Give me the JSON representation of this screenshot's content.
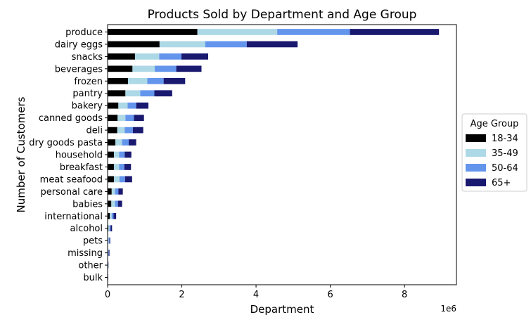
{
  "chart_data": {
    "type": "bar",
    "orientation": "horizontal",
    "stacked": true,
    "title": "Products Sold by Department and Age Group",
    "xlabel": "Department",
    "ylabel": "Number of Customers",
    "x_offset_label": "1e6",
    "xlim": [
      0,
      9.4
    ],
    "x_ticks": [
      0,
      2,
      4,
      6,
      8
    ],
    "x_tick_labels": [
      "0",
      "2",
      "4",
      "6",
      "8"
    ],
    "grid": false,
    "legend": {
      "title": "Age Group",
      "placement": "center-right-outside"
    },
    "categories": [
      "produce",
      "dairy eggs",
      "snacks",
      "beverages",
      "frozen",
      "pantry",
      "bakery",
      "canned goods",
      "deli",
      "dry goods pasta",
      "household",
      "breakfast",
      "meat seafood",
      "personal care",
      "babies",
      "international",
      "alcohol",
      "pets",
      "missing",
      "other",
      "bulk"
    ],
    "series": [
      {
        "name": "18-34",
        "color": "#000000",
        "values": [
          2.42,
          1.4,
          0.74,
          0.67,
          0.55,
          0.48,
          0.29,
          0.27,
          0.26,
          0.21,
          0.17,
          0.17,
          0.17,
          0.11,
          0.1,
          0.06,
          0.02,
          0.01,
          0.01,
          0.005,
          0.003
        ]
      },
      {
        "name": "35-49",
        "color": "#ADD8E6",
        "values": [
          2.15,
          1.23,
          0.65,
          0.6,
          0.52,
          0.4,
          0.25,
          0.21,
          0.2,
          0.18,
          0.14,
          0.14,
          0.15,
          0.09,
          0.1,
          0.05,
          0.03,
          0.02,
          0.01,
          0.007,
          0.005
        ]
      },
      {
        "name": "50-64",
        "color": "#6495ED",
        "values": [
          1.96,
          1.12,
          0.6,
          0.58,
          0.44,
          0.38,
          0.23,
          0.23,
          0.22,
          0.18,
          0.15,
          0.14,
          0.15,
          0.09,
          0.08,
          0.05,
          0.03,
          0.02,
          0.01,
          0.006,
          0.004
        ]
      },
      {
        "name": "65+",
        "color": "#191970",
        "values": [
          2.4,
          1.37,
          0.72,
          0.68,
          0.58,
          0.48,
          0.33,
          0.27,
          0.28,
          0.2,
          0.18,
          0.18,
          0.19,
          0.12,
          0.11,
          0.07,
          0.04,
          0.02,
          0.02,
          0.006,
          0.004
        ]
      }
    ]
  }
}
